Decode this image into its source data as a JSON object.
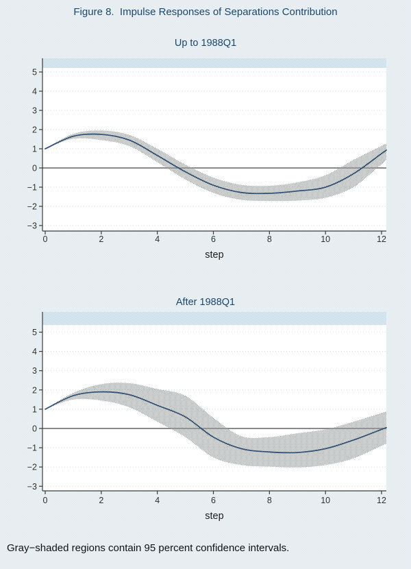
{
  "figure": {
    "title": "Figure 8.  Impulse Responses of Separations Contribution",
    "note": "Gray−shaded regions contain 95 percent confidence intervals."
  },
  "colors": {
    "background": "#eef2f4",
    "title_text": "#1a476f",
    "plot_background": "#ffffff",
    "top_strip_base": "#e4edf3",
    "top_strip_dot": "#c3d9e7",
    "gridline": "#c5dde2",
    "zero_line": "#636363",
    "axis": "#3a3a3a",
    "tick_label": "#303030",
    "band_gray": "#9aa0a2",
    "line_navy": "#30517e",
    "note_text": "#111111"
  },
  "chart_data": [
    {
      "type": "line",
      "title": "Up to 1988Q1",
      "xlabel": "step",
      "x": [
        0,
        1,
        2,
        3,
        4,
        5,
        6,
        7,
        8,
        9,
        10,
        11,
        12
      ],
      "series": [
        {
          "name": "impulse response",
          "values": [
            1.0,
            1.65,
            1.75,
            1.45,
            0.65,
            -0.2,
            -0.9,
            -1.28,
            -1.32,
            -1.2,
            -1.0,
            -0.3,
            0.75
          ]
        },
        {
          "name": "95% CI upper",
          "values": [
            1.0,
            1.78,
            1.95,
            1.72,
            1.0,
            0.18,
            -0.5,
            -0.88,
            -0.93,
            -0.75,
            -0.38,
            0.42,
            1.15
          ]
        },
        {
          "name": "95% CI lower",
          "values": [
            1.0,
            1.52,
            1.45,
            1.14,
            0.3,
            -0.6,
            -1.3,
            -1.66,
            -1.72,
            -1.7,
            -1.55,
            -1.0,
            0.2
          ]
        }
      ],
      "xticks": [
        0,
        2,
        4,
        6,
        8,
        10,
        12
      ],
      "xtick_labels": [
        "0",
        "2",
        "4",
        "6",
        "8",
        "10",
        "12"
      ],
      "yticks": [
        5,
        4,
        3,
        2,
        1,
        0,
        -1,
        -2,
        -3
      ],
      "ytick_labels": [
        "5",
        "4",
        "3",
        "2",
        "1",
        "0",
        "−1",
        "−2",
        "−3"
      ],
      "xlim": [
        -0.1,
        12.2
      ],
      "ylim": [
        -3.3,
        5.7
      ],
      "grid": "dotted-horizontal",
      "zero_line": true,
      "legend": "none"
    },
    {
      "type": "line",
      "title": "After 1988Q1",
      "xlabel": "step",
      "x": [
        0,
        1,
        2,
        3,
        4,
        5,
        6,
        7,
        8,
        9,
        10,
        11,
        12
      ],
      "series": [
        {
          "name": "impulse response",
          "values": [
            1.0,
            1.7,
            1.9,
            1.75,
            1.2,
            0.6,
            -0.45,
            -1.05,
            -1.22,
            -1.25,
            -1.05,
            -0.6,
            -0.05
          ]
        },
        {
          "name": "95% CI upper",
          "values": [
            1.0,
            1.85,
            2.3,
            2.35,
            2.05,
            1.7,
            0.55,
            -0.4,
            -0.45,
            -0.25,
            -0.05,
            0.35,
            0.8
          ]
        },
        {
          "name": "95% CI lower",
          "values": [
            1.0,
            1.5,
            1.45,
            1.1,
            0.35,
            -0.45,
            -1.5,
            -1.9,
            -1.98,
            -2.02,
            -1.9,
            -1.55,
            -0.9
          ]
        }
      ],
      "xticks": [
        0,
        2,
        4,
        6,
        8,
        10,
        12
      ],
      "xtick_labels": [
        "0",
        "2",
        "4",
        "6",
        "8",
        "10",
        "12"
      ],
      "yticks": [
        5,
        4,
        3,
        2,
        1,
        0,
        -1,
        -2,
        -3
      ],
      "ytick_labels": [
        "5",
        "4",
        "3",
        "2",
        "1",
        "0",
        "−1",
        "−2",
        "−3"
      ],
      "xlim": [
        -0.1,
        12.2
      ],
      "ylim": [
        -3.3,
        5.7
      ],
      "grid": "dotted-horizontal",
      "zero_line": true,
      "legend": "none"
    }
  ]
}
